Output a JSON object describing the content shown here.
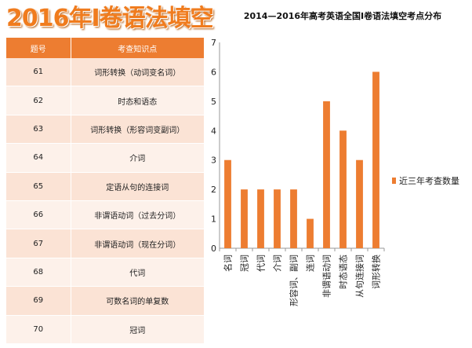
{
  "banner": {
    "title": "2016年I卷语法填空"
  },
  "table": {
    "headers": [
      "题号",
      "考查知识点"
    ],
    "rows": [
      {
        "num": "61",
        "point": "词形转换（动词变名词）"
      },
      {
        "num": "62",
        "point": "时态和语态"
      },
      {
        "num": "63",
        "point": "词形转换（形容词变副词）"
      },
      {
        "num": "64",
        "point": "介词"
      },
      {
        "num": "65",
        "point": "定语从句的连接词"
      },
      {
        "num": "66",
        "point": "非谓语动词（过去分词）"
      },
      {
        "num": "67",
        "point": "非谓语动词（现在分词）"
      },
      {
        "num": "68",
        "point": "代词"
      },
      {
        "num": "69",
        "point": "可数名词的单复数"
      },
      {
        "num": "70",
        "point": "冠词"
      }
    ]
  },
  "chart_data": {
    "type": "bar",
    "title": "2014—2016年高考英语全国I卷语法填空考点分布",
    "categories": [
      "名词",
      "冠词",
      "代词",
      "介词",
      "形容词、副词",
      "连词",
      "非谓语动词",
      "时态语态",
      "从句连接词",
      "词形转换"
    ],
    "series": [
      {
        "name": "近三年考查数量",
        "values": [
          3,
          2,
          2,
          2,
          2,
          1,
          5,
          4,
          3,
          6
        ]
      }
    ],
    "xlabel": "",
    "ylabel": "",
    "ylim": [
      0,
      7
    ],
    "yticks": [
      0,
      1,
      2,
      3,
      4,
      5,
      6,
      7
    ],
    "grid": false,
    "legend_position": "right",
    "bar_color": "#ed7d31"
  }
}
